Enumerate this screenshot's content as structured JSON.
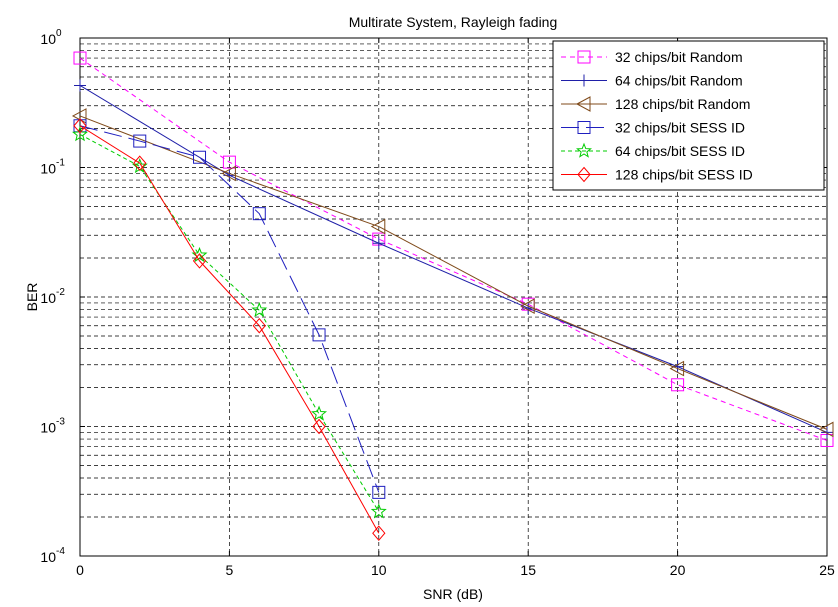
{
  "chart_data": {
    "type": "line",
    "title": "Multirate System, Rayleigh fading",
    "xlabel": "SNR (dB)",
    "ylabel": "BER",
    "xlim": [
      0,
      25
    ],
    "ylim": [
      0.0001,
      1
    ],
    "yscale": "log",
    "grid": "dashed",
    "legend_position": "top-right",
    "x_ticks": [
      0,
      5,
      10,
      15,
      20,
      25
    ],
    "x_tick_labels": [
      "0",
      "5",
      "10",
      "15",
      "20",
      "25"
    ],
    "y_ticks": [
      {
        "value": 1,
        "base": "10",
        "exp": "0"
      },
      {
        "value": 0.1,
        "base": "10",
        "exp": "-1"
      },
      {
        "value": 0.01,
        "base": "10",
        "exp": "-2"
      },
      {
        "value": 0.001,
        "base": "10",
        "exp": "-3"
      },
      {
        "value": 0.0001,
        "base": "10",
        "exp": "-4"
      }
    ],
    "series": [
      {
        "name": "32 chips/bit Random",
        "color": "#ff00ff",
        "dash": "5,4",
        "marker": "square",
        "points": [
          [
            0,
            0.7
          ],
          [
            5,
            0.11
          ],
          [
            10,
            0.028
          ],
          [
            15,
            0.0088
          ],
          [
            20,
            0.0021
          ],
          [
            25,
            0.00078
          ]
        ]
      },
      {
        "name": "64 chips/bit Random",
        "color": "#1f1fa8",
        "dash": "",
        "marker": "plus",
        "points": [
          [
            0,
            0.43
          ],
          [
            5,
            0.087
          ],
          [
            10,
            0.026
          ],
          [
            15,
            0.0082
          ],
          [
            20,
            0.0029
          ],
          [
            25,
            0.0009
          ]
        ]
      },
      {
        "name": "128 chips/bit Random",
        "color": "#7f4a1a",
        "dash": "",
        "marker": "triangle-left",
        "points": [
          [
            0,
            0.25
          ],
          [
            5,
            0.09
          ],
          [
            10,
            0.035
          ],
          [
            15,
            0.0085
          ],
          [
            20,
            0.0028
          ],
          [
            25,
            0.00095
          ]
        ]
      },
      {
        "name": "32 chips/bit SESS ID",
        "color": "#1f1fbf",
        "dash": "18,7",
        "marker": "square",
        "points": [
          [
            0,
            0.21
          ],
          [
            2,
            0.16
          ],
          [
            4,
            0.12
          ],
          [
            6,
            0.044
          ],
          [
            8,
            0.0051
          ],
          [
            10,
            0.00031
          ]
        ]
      },
      {
        "name": "64 chips/bit SESS ID",
        "color": "#00cc00",
        "dash": "4,3",
        "marker": "star",
        "points": [
          [
            0,
            0.18
          ],
          [
            2,
            0.102
          ],
          [
            4,
            0.021
          ],
          [
            6,
            0.0079
          ],
          [
            8,
            0.00125
          ],
          [
            10,
            0.00022
          ]
        ]
      },
      {
        "name": "128 chips/bit SESS ID",
        "color": "#ff0000",
        "dash": "",
        "marker": "diamond",
        "points": [
          [
            0,
            0.21
          ],
          [
            2,
            0.108
          ],
          [
            4,
            0.019
          ],
          [
            6,
            0.006
          ],
          [
            8,
            0.001
          ],
          [
            10,
            0.00015
          ]
        ]
      }
    ]
  }
}
